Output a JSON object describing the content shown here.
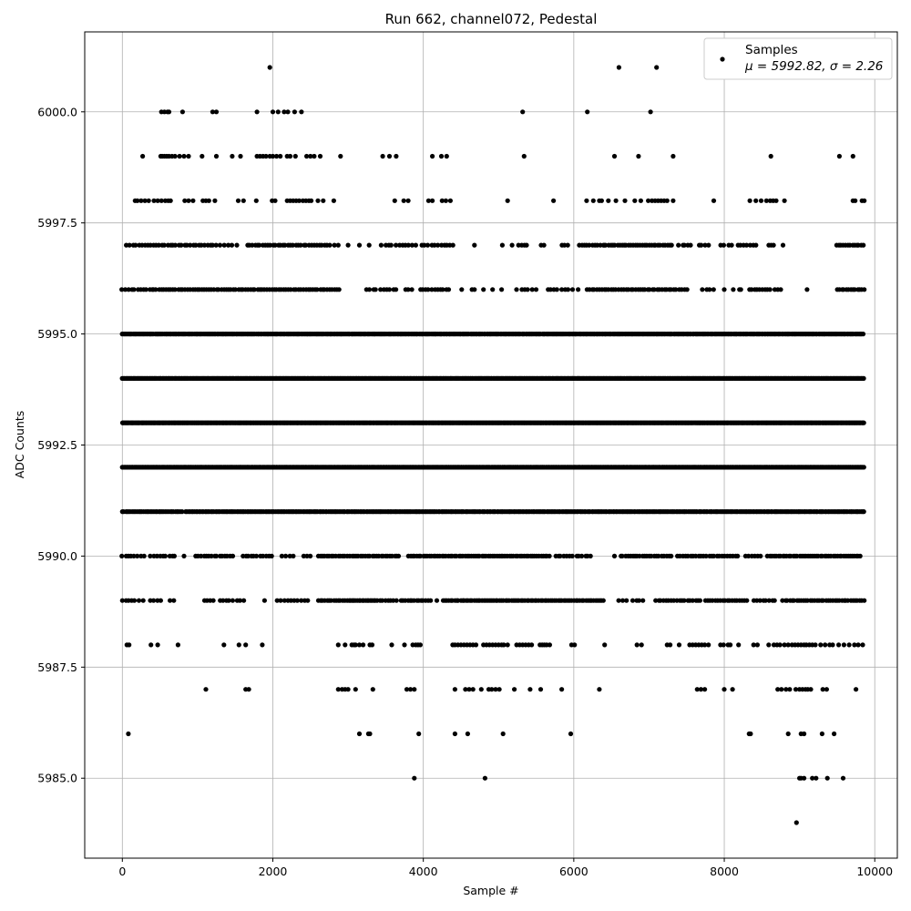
{
  "chart_data": {
    "type": "scatter",
    "title": "Run 662, channel072, Pedestal",
    "xlabel": "Sample #",
    "ylabel": "ADC Counts",
    "xlim": [
      -500,
      10300
    ],
    "ylim": [
      5983.2,
      6001.8
    ],
    "xticks": [
      0,
      2000,
      4000,
      6000,
      8000,
      10000
    ],
    "yticks": [
      5985.0,
      5987.5,
      5990.0,
      5992.5,
      5995.0,
      5997.5,
      6000.0
    ],
    "xtick_labels": [
      "0",
      "2000",
      "4000",
      "6000",
      "8000",
      "10000"
    ],
    "ytick_labels": [
      "5985.0",
      "5987.5",
      "5990.0",
      "5992.5",
      "5995.0",
      "5997.5",
      "6000.0"
    ],
    "grid": true,
    "legend": {
      "position": "top-right",
      "entries": [
        {
          "name": "Samples",
          "stats": "μ = 5992.82, σ = 2.26"
        }
      ]
    },
    "marker_color": "#000000",
    "n_samples": 9880,
    "levels": [
      {
        "y": 6001,
        "x": [
          1960,
          6600,
          7100
        ]
      },
      {
        "y": 6000,
        "x": [
          520,
          560,
          600,
          620,
          800,
          1200,
          1250,
          1790,
          2000,
          2070,
          2150,
          2200,
          2290,
          2380,
          5320,
          6180,
          7020
        ]
      },
      {
        "y": 5999,
        "x": [
          270,
          510,
          530,
          560,
          590,
          620,
          660,
          700,
          760,
          820,
          880,
          1060,
          1250,
          1460,
          1570,
          1790,
          1830,
          1870,
          1910,
          1960,
          2000,
          2050,
          2100,
          2190,
          2230,
          2300,
          2450,
          2500,
          2550,
          2630,
          2900,
          3460,
          3550,
          3640,
          4120,
          4240,
          4310,
          5340,
          6540,
          6860,
          7320,
          8620,
          9530,
          9710
        ]
      },
      {
        "y": 5998,
        "x": [
          170,
          200,
          250,
          300,
          350,
          420,
          470,
          520,
          570,
          610,
          640,
          830,
          880,
          940,
          1070,
          1110,
          1150,
          1230,
          1540,
          1610,
          1780,
          1990,
          2030,
          2190,
          2230,
          2270,
          2310,
          2350,
          2400,
          2440,
          2480,
          2510,
          2600,
          2670,
          2810,
          3620,
          3740,
          3800,
          4070,
          4120,
          4250,
          4300,
          4360,
          5120,
          5730,
          6170,
          6260,
          6340,
          6370,
          6460,
          6560,
          6680,
          6810,
          6890,
          6990,
          7040,
          7080,
          7120,
          7160,
          7200,
          7240,
          7320,
          7860,
          8340,
          8420,
          8490,
          8560,
          8610,
          8650,
          8690,
          8800,
          9710,
          9740,
          9830,
          9860
        ]
      },
      {
        "y": 5997,
        "segments": [
          [
            60,
            340,
            40
          ],
          [
            370,
            1230,
            38
          ],
          [
            1260,
            1530,
            50
          ],
          [
            1660,
            2770,
            34
          ],
          [
            2810,
            2870,
            60
          ],
          [
            3000,
            3000,
            1
          ],
          [
            3150,
            3150,
            1
          ],
          [
            3280,
            3280,
            1
          ],
          [
            3450,
            3900,
            45
          ],
          [
            3980,
            4400,
            42
          ],
          [
            4680,
            4680,
            1
          ],
          [
            5050,
            5050,
            1
          ],
          [
            5180,
            5180,
            1
          ],
          [
            5260,
            5400,
            40
          ],
          [
            5560,
            5620,
            60
          ],
          [
            5850,
            5920,
            35
          ],
          [
            6070,
            6400,
            35
          ],
          [
            6400,
            7300,
            30
          ],
          [
            7400,
            7560,
            40
          ],
          [
            7660,
            7820,
            45
          ],
          [
            7960,
            8100,
            45
          ],
          [
            8180,
            8440,
            40
          ],
          [
            8590,
            8660,
            35
          ],
          [
            8780,
            8780,
            1
          ],
          [
            9490,
            9860,
            30
          ]
        ]
      },
      {
        "y": 5996,
        "segments": [
          [
            0,
            400,
            40
          ],
          [
            420,
            2900,
            32
          ],
          [
            3240,
            3650,
            45
          ],
          [
            3760,
            3850,
            45
          ],
          [
            3960,
            4360,
            38
          ],
          [
            4510,
            4510,
            1
          ],
          [
            4640,
            4680,
            40
          ],
          [
            4800,
            4800,
            1
          ],
          [
            4920,
            4920,
            1
          ],
          [
            5040,
            5040,
            1
          ],
          [
            5250,
            5520,
            50
          ],
          [
            5650,
            5960,
            45
          ],
          [
            6000,
            6060,
            60
          ],
          [
            6180,
            7450,
            32
          ],
          [
            7480,
            7510,
            30
          ],
          [
            7720,
            7860,
            45
          ],
          [
            8000,
            8000,
            1
          ],
          [
            8120,
            8120,
            1
          ],
          [
            8200,
            8220,
            20
          ],
          [
            8330,
            8640,
            35
          ],
          [
            8680,
            8760,
            40
          ],
          [
            9100,
            9100,
            1
          ],
          [
            9500,
            9860,
            30
          ]
        ]
      },
      {
        "y": 5995,
        "segments": [
          [
            0,
            9860,
            18
          ]
        ]
      },
      {
        "y": 5994,
        "segments": [
          [
            0,
            9860,
            14
          ]
        ]
      },
      {
        "y": 5993,
        "segments": [
          [
            0,
            9860,
            13
          ]
        ]
      },
      {
        "y": 5992,
        "segments": [
          [
            0,
            9860,
            13
          ]
        ]
      },
      {
        "y": 5991,
        "segments": [
          [
            0,
            800,
            22
          ],
          [
            840,
            9860,
            20
          ]
        ]
      },
      {
        "y": 5990,
        "segments": [
          [
            0,
            300,
            40
          ],
          [
            380,
            700,
            40
          ],
          [
            820,
            820,
            1
          ],
          [
            980,
            1500,
            35
          ],
          [
            1600,
            2000,
            38
          ],
          [
            2130,
            2300,
            45
          ],
          [
            2420,
            2500,
            40
          ],
          [
            2600,
            3700,
            30
          ],
          [
            3800,
            5700,
            28
          ],
          [
            5750,
            6250,
            40
          ],
          [
            6540,
            6540,
            1
          ],
          [
            6620,
            7300,
            32
          ],
          [
            7380,
            8200,
            35
          ],
          [
            8290,
            8500,
            40
          ],
          [
            8580,
            9820,
            28
          ]
        ]
      },
      {
        "y": 5989,
        "segments": [
          [
            0,
            160,
            40
          ],
          [
            230,
            280,
            50
          ],
          [
            380,
            520,
            40
          ],
          [
            640,
            700,
            40
          ],
          [
            1090,
            1220,
            40
          ],
          [
            1290,
            1640,
            45
          ],
          [
            1890,
            1890,
            1
          ],
          [
            2060,
            2500,
            45
          ],
          [
            2600,
            2980,
            30
          ],
          [
            2990,
            3400,
            22
          ],
          [
            3420,
            3650,
            38
          ],
          [
            3700,
            4100,
            30
          ],
          [
            4180,
            4180,
            1
          ],
          [
            4260,
            6400,
            26
          ],
          [
            6600,
            6700,
            50
          ],
          [
            6780,
            6950,
            45
          ],
          [
            7090,
            7700,
            35
          ],
          [
            7750,
            8300,
            32
          ],
          [
            8390,
            8700,
            40
          ],
          [
            8780,
            9860,
            30
          ]
        ]
      },
      {
        "y": 5988,
        "x": [
          60,
          90,
          380,
          470,
          740,
          1350,
          1550,
          1640,
          1860,
          2870,
          2960,
          3050,
          3080,
          3100,
          3150,
          3200,
          3290,
          3320,
          3580,
          3750,
          3860,
          3900,
          3930,
          3960,
          4390,
          4420,
          4460,
          4500,
          4540,
          4580,
          4620,
          4660,
          4700,
          4800,
          4840,
          4880,
          4920,
          4960,
          5000,
          5040,
          5070,
          5120,
          5240,
          5280,
          5320,
          5360,
          5400,
          5440,
          5550,
          5580,
          5610,
          5640,
          5680,
          5970,
          6010,
          6410,
          6840,
          6900,
          7240,
          7280,
          7400,
          7540,
          7580,
          7620,
          7660,
          7700,
          7740,
          7790,
          7950,
          7990,
          8050,
          8080,
          8190,
          8390,
          8440,
          8590,
          8660,
          8700,
          8740,
          8800,
          8850,
          8900,
          8940,
          8980,
          9020,
          9060,
          9090,
          9130,
          9170,
          9210,
          9280,
          9340,
          9400,
          9440,
          9520,
          9590,
          9660,
          9730,
          9780,
          9840
        ]
      },
      {
        "y": 5987,
        "x": [
          1110,
          1640,
          1680,
          2870,
          2920,
          2960,
          3000,
          3100,
          3330,
          3780,
          3830,
          3880,
          4420,
          4560,
          4610,
          4660,
          4770,
          4870,
          4910,
          4960,
          5010,
          5210,
          5420,
          5560,
          5840,
          6340,
          7640,
          7690,
          7740,
          8000,
          8110,
          8710,
          8760,
          8820,
          8870,
          8950,
          9000,
          9040,
          9080,
          9110,
          9150,
          9310,
          9360,
          9750
        ]
      },
      {
        "y": 5986,
        "x": [
          80,
          3150,
          3270,
          3290,
          3940,
          4420,
          4590,
          5060,
          5960,
          8330,
          8350,
          8850,
          9020,
          9060,
          9300,
          9460
        ]
      },
      {
        "y": 5985,
        "x": [
          3880,
          4820,
          9000,
          9020,
          9060,
          9170,
          9220,
          9370,
          9580
        ]
      },
      {
        "y": 5984,
        "x": [
          8960
        ]
      }
    ]
  }
}
